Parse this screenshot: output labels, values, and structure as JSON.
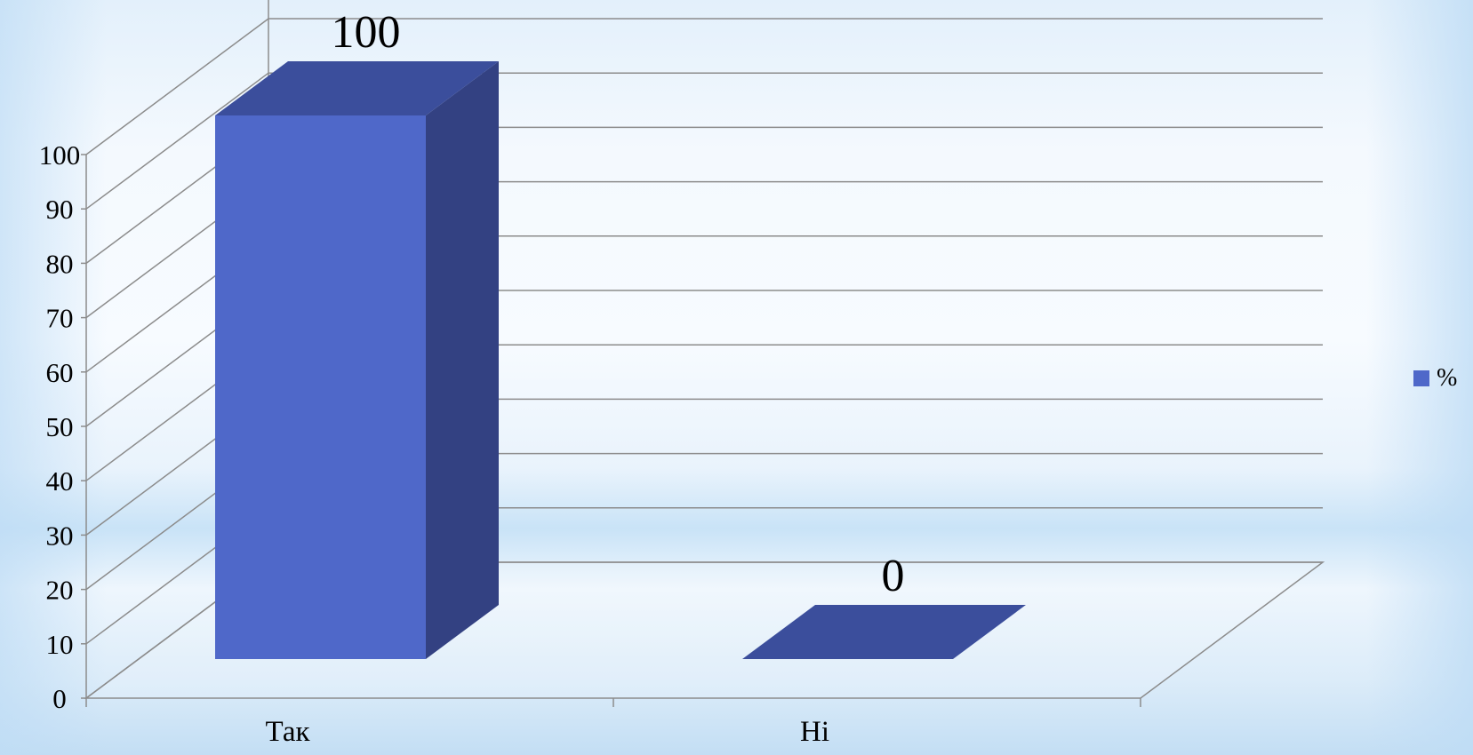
{
  "chart_data": {
    "type": "bar",
    "categories": [
      "Так",
      "Ні"
    ],
    "series": [
      {
        "name": "%",
        "values": [
          100,
          0
        ]
      }
    ],
    "data_labels": [
      "100",
      "0"
    ],
    "yticks": [
      "0",
      "10",
      "20",
      "30",
      "40",
      "50",
      "60",
      "70",
      "80",
      "90",
      "100"
    ],
    "ylim": [
      0,
      100
    ],
    "title": "",
    "xlabel": "",
    "ylabel": "",
    "grid": true,
    "legend_position": "right",
    "style": "3d-column"
  },
  "colors": {
    "bar_front": "#4f68c9",
    "bar_top": "#3b4e9c",
    "bar_side": "#334182",
    "grid": "#8c8c8c",
    "text": "#000000"
  },
  "legend": {
    "label": "%"
  }
}
